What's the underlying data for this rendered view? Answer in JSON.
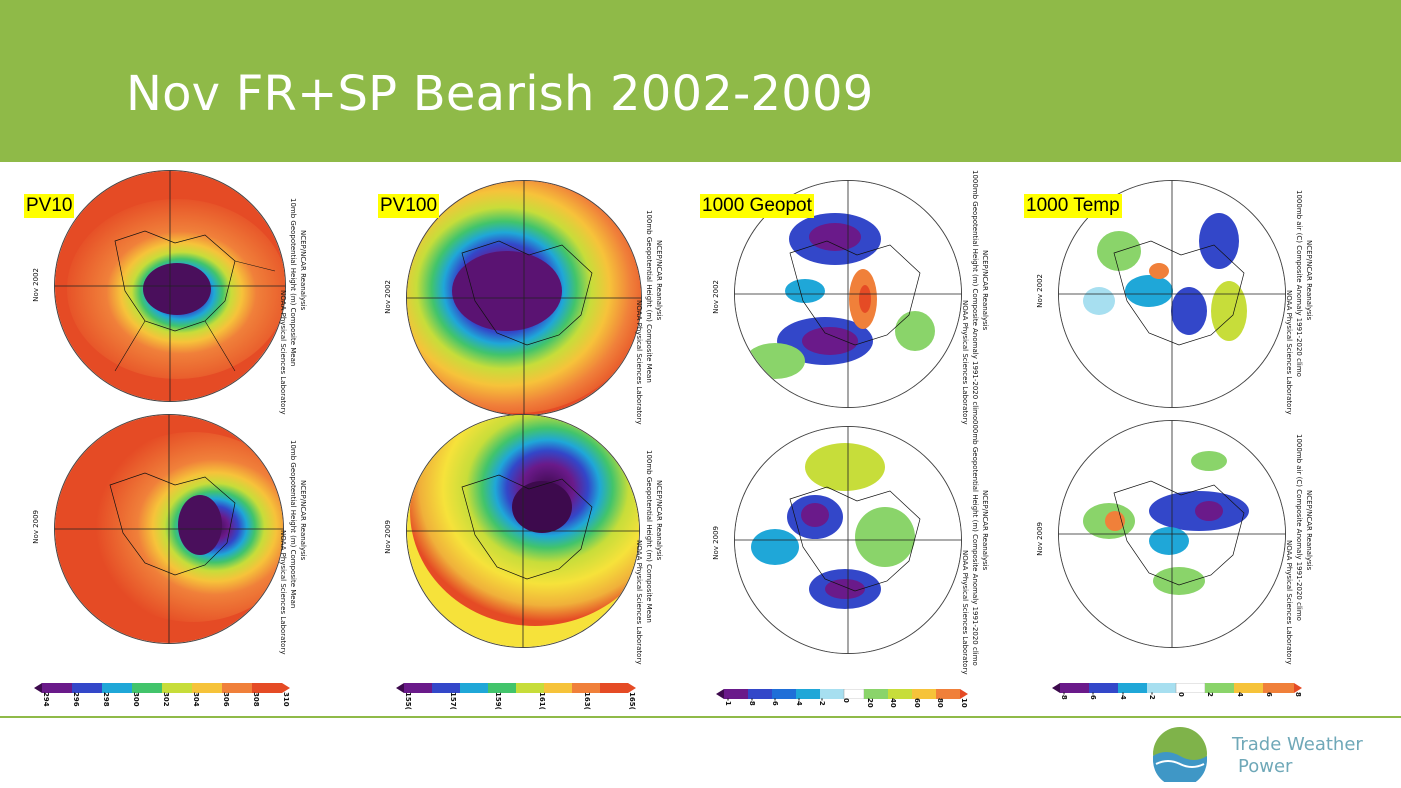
{
  "title": "Nov FR+SP Bearish 2002-2009",
  "colors": {
    "header": "#8fba48",
    "accent": "#6fa8b8",
    "label_bg": "#ffff00"
  },
  "panels": [
    {
      "label": "PV10",
      "side_top": "10mb Geopotential Height (m) Composite Mean",
      "side_top_b": "NCEP/NCAR Reanalysis",
      "side_top_c": "NOAA Physical Sciences Laboratory",
      "date_top": "Nov 2002",
      "side_bottom": "10mb Geopotential Height (m) Composite Mean",
      "side_bottom_b": "NCEP/NCAR Reanalysis",
      "side_bottom_c": "NOAA Physical Sciences Laboratory",
      "date_bottom": "Nov 2009",
      "ticks": [
        "294",
        "296",
        "298",
        "300",
        "302",
        "304",
        "306",
        "308",
        "310"
      ]
    },
    {
      "label": "PV100",
      "side_top": "100mb Geopotential Height (m) Composite Mean",
      "side_top_b": "NCEP/NCAR Reanalysis",
      "side_top_c": "NOAA Physical Sciences Laboratory",
      "date_top": "Nov 2002",
      "side_bottom": "100mb Geopotential Height (m) Composite Mean",
      "side_bottom_b": "NCEP/NCAR Reanalysis",
      "side_bottom_c": "NOAA Physical Sciences Laboratory",
      "date_bottom": "Nov 2009",
      "ticks": [
        "155(",
        "157(",
        "159(",
        "161(",
        "163(",
        "165("
      ]
    },
    {
      "label": "1000 Geopot",
      "side_top": "1000mb Geopotential Height (m) Composite Anomaly 1991-2020 climo",
      "side_top_b": "NCEP/NCAR Reanalysis",
      "side_top_c": "NOAA Physical Sciences Laboratory",
      "date_top": "Nov 2002",
      "side_bottom": "000mb Geopotential Height (m) Composite Anomaly 1991-2020 climo",
      "side_bottom_b": "NCEP/NCAR Reanalysis",
      "side_bottom_c": "NOAA Physical Sciences Laboratory",
      "date_bottom": "Nov 2009",
      "ticks": [
        "-1",
        "-8",
        "-6",
        "-4",
        "-2",
        "0",
        "20",
        "40",
        "60",
        "80",
        "10"
      ]
    },
    {
      "label": "1000 Temp",
      "side_top": "1000mb air (C) Composite Anomaly 1991-2020 climo",
      "side_top_b": "NCEP/NCAR Reanalysis",
      "side_top_c": "NOAA Physical Sciences Laboratory",
      "date_top": "Nov 2002",
      "side_bottom": "1000mb air (C) Composite Anomaly 1991-2020 climo",
      "side_bottom_b": "NCEP/NCAR Reanalysis",
      "side_bottom_c": "NOAA Physical Sciences Laboratory",
      "date_bottom": "Nov 2009",
      "ticks": [
        "-8",
        "-6",
        "-4",
        "-2",
        "0",
        "2",
        "4",
        "6",
        "8"
      ]
    }
  ],
  "logo": {
    "line1": "Trade Weather",
    "line2": "Power",
    "icon": "wave-logo-icon"
  }
}
